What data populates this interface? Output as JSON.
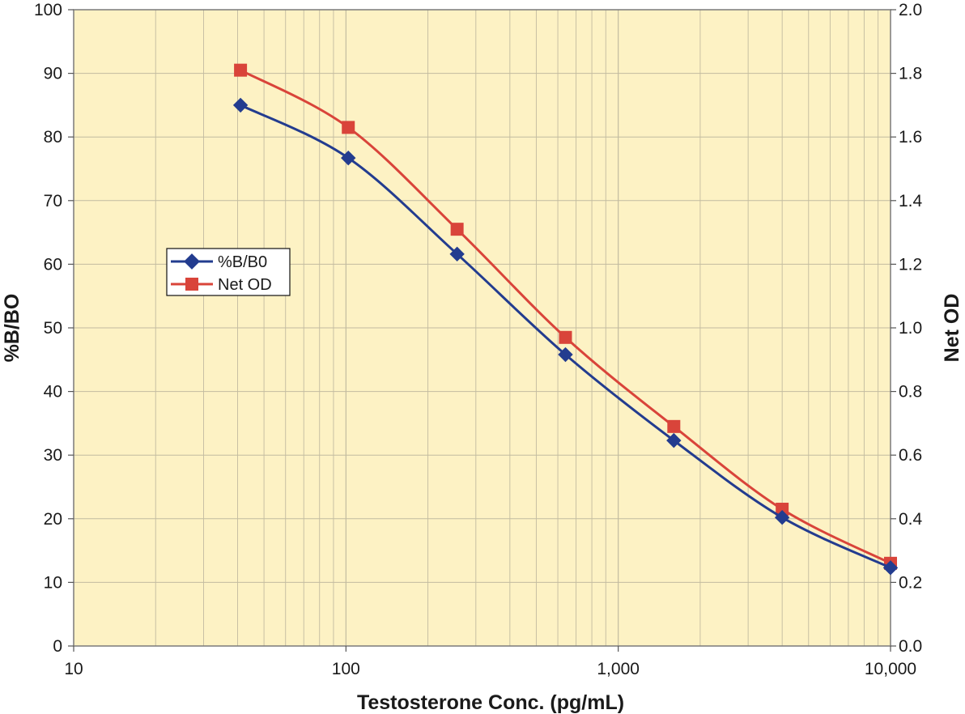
{
  "chart_data": {
    "type": "line",
    "x_scale": "log",
    "x": [
      41,
      102,
      256,
      640,
      1600,
      4000,
      10000
    ],
    "xlim": [
      10,
      10000
    ],
    "x_ticks": [
      10,
      100,
      1000,
      10000
    ],
    "x_tick_labels": [
      "10",
      "100",
      "1,000",
      "10,000"
    ],
    "xlabel": "Testosterone Conc. (pg/mL)",
    "ylabel": "%B/BO",
    "ylim": [
      0,
      100
    ],
    "y_ticks": [
      0,
      10,
      20,
      30,
      40,
      50,
      60,
      70,
      80,
      90,
      100
    ],
    "y_tick_labels": [
      "0",
      "10",
      "20",
      "30",
      "40",
      "50",
      "60",
      "70",
      "80",
      "90",
      "100"
    ],
    "y2label": "Net OD",
    "y2lim": [
      0,
      2.0
    ],
    "y2_ticks": [
      0,
      0.2,
      0.4,
      0.6,
      0.8,
      1.0,
      1.2,
      1.4,
      1.6,
      1.8,
      2.0
    ],
    "y2_tick_labels": [
      "0.0",
      "0.2",
      "0.4",
      "0.6",
      "0.8",
      "1.0",
      "1.2",
      "1.4",
      "1.6",
      "1.8",
      "2.0"
    ],
    "series": [
      {
        "name": "%B/B0",
        "axis": "left",
        "marker": "diamond",
        "color": "#233c8f",
        "values": [
          85.0,
          76.7,
          61.6,
          45.8,
          32.3,
          20.2,
          12.3
        ]
      },
      {
        "name": "Net OD",
        "axis": "right",
        "marker": "square",
        "color": "#d9443a",
        "values": [
          1.81,
          1.63,
          1.31,
          0.97,
          0.69,
          0.43,
          0.26
        ]
      }
    ],
    "grid": true,
    "legend_position": "left-middle",
    "colors": {
      "plot_background": "#fdf2c4",
      "grid": "#c2bba0",
      "axis": "#7a7a7a"
    }
  }
}
